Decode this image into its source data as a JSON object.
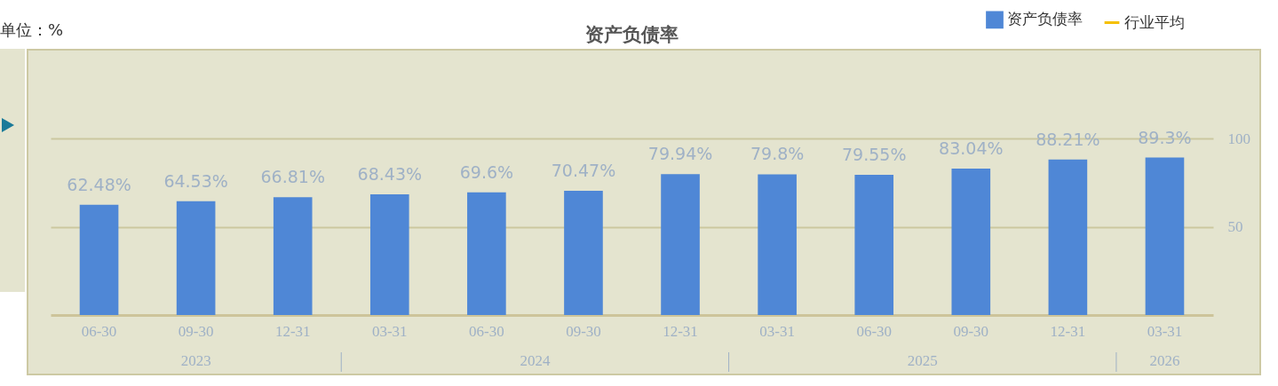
{
  "chart_data": {
    "type": "bar",
    "title": "资产负债率",
    "categories": [
      "06-30",
      "09-30",
      "12-31",
      "03-31",
      "06-30",
      "09-30",
      "12-31",
      "03-31",
      "06-30",
      "09-30",
      "12-31",
      "03-31"
    ],
    "series": [
      {
        "name": "资产负债率",
        "color": "#4f87d6",
        "values": [
          62.48,
          64.53,
          66.81,
          68.43,
          69.6,
          70.47,
          79.94,
          79.8,
          79.55,
          83.04,
          88.21,
          89.3
        ],
        "value_labels": [
          "62.48%",
          "64.53%",
          "66.81%",
          "68.43%",
          "69.6%",
          "70.47%",
          "79.94%",
          "79.8%",
          "79.55%",
          "83.04%",
          "88.21%",
          "89.3%"
        ]
      },
      {
        "name": "行业平均",
        "type": "line",
        "color": "#f5c000",
        "values": [
          null,
          null,
          null,
          null,
          null,
          null,
          null,
          null,
          null,
          null,
          null,
          null
        ]
      }
    ],
    "ylim": [
      0,
      150
    ],
    "yticks": [
      50,
      100
    ],
    "grid": "y",
    "legend": "top right",
    "annotations": [
      "单位：%",
      "2023",
      "2024",
      "2025",
      "2026"
    ]
  }
}
